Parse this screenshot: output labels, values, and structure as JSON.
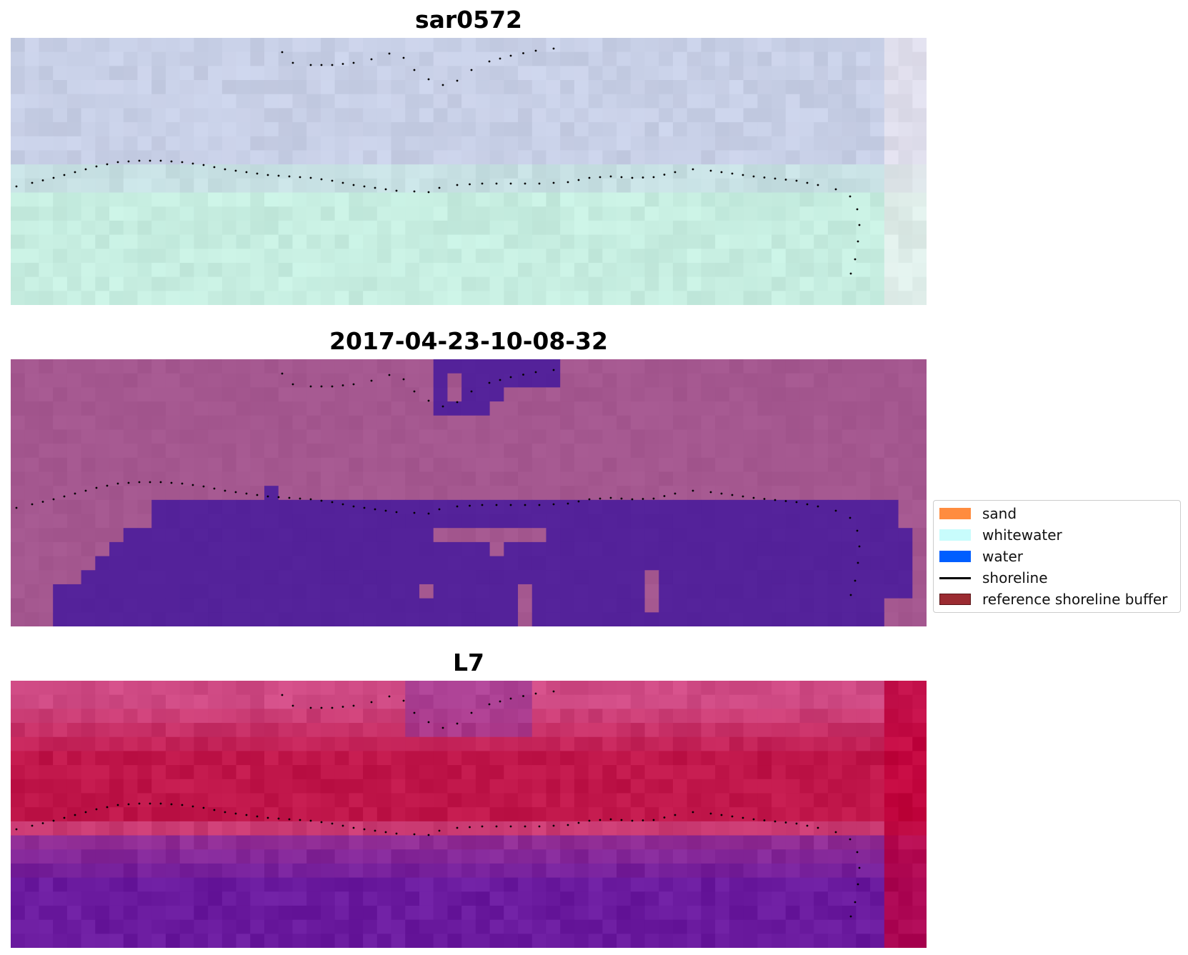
{
  "panels": [
    {
      "title": "sar0572",
      "kind": "rgb"
    },
    {
      "title": "2017-04-23-10-08-32",
      "kind": "classified"
    },
    {
      "title": "L7",
      "kind": "index"
    }
  ],
  "legend": {
    "items": [
      {
        "label": "sand",
        "type": "patch",
        "color": "#ff8c3f"
      },
      {
        "label": "whitewater",
        "type": "patch",
        "color": "#c8fcfc"
      },
      {
        "label": "water",
        "type": "patch",
        "color": "#005eff"
      },
      {
        "label": "shoreline",
        "type": "line",
        "color": "#000000"
      },
      {
        "label": "reference shoreline buffer",
        "type": "patch",
        "color": "#9b2b31"
      }
    ]
  },
  "colors": {
    "rgb_top": "#c7cde6",
    "rgb_bottom": "#c6efe0",
    "classified_bg": "#a4578f",
    "classified_water": "#54229a",
    "index_top": "#cf4a84",
    "index_band": "#c0164a",
    "index_bottom": "#6a1a9e",
    "index_edge": "#c2003a"
  }
}
